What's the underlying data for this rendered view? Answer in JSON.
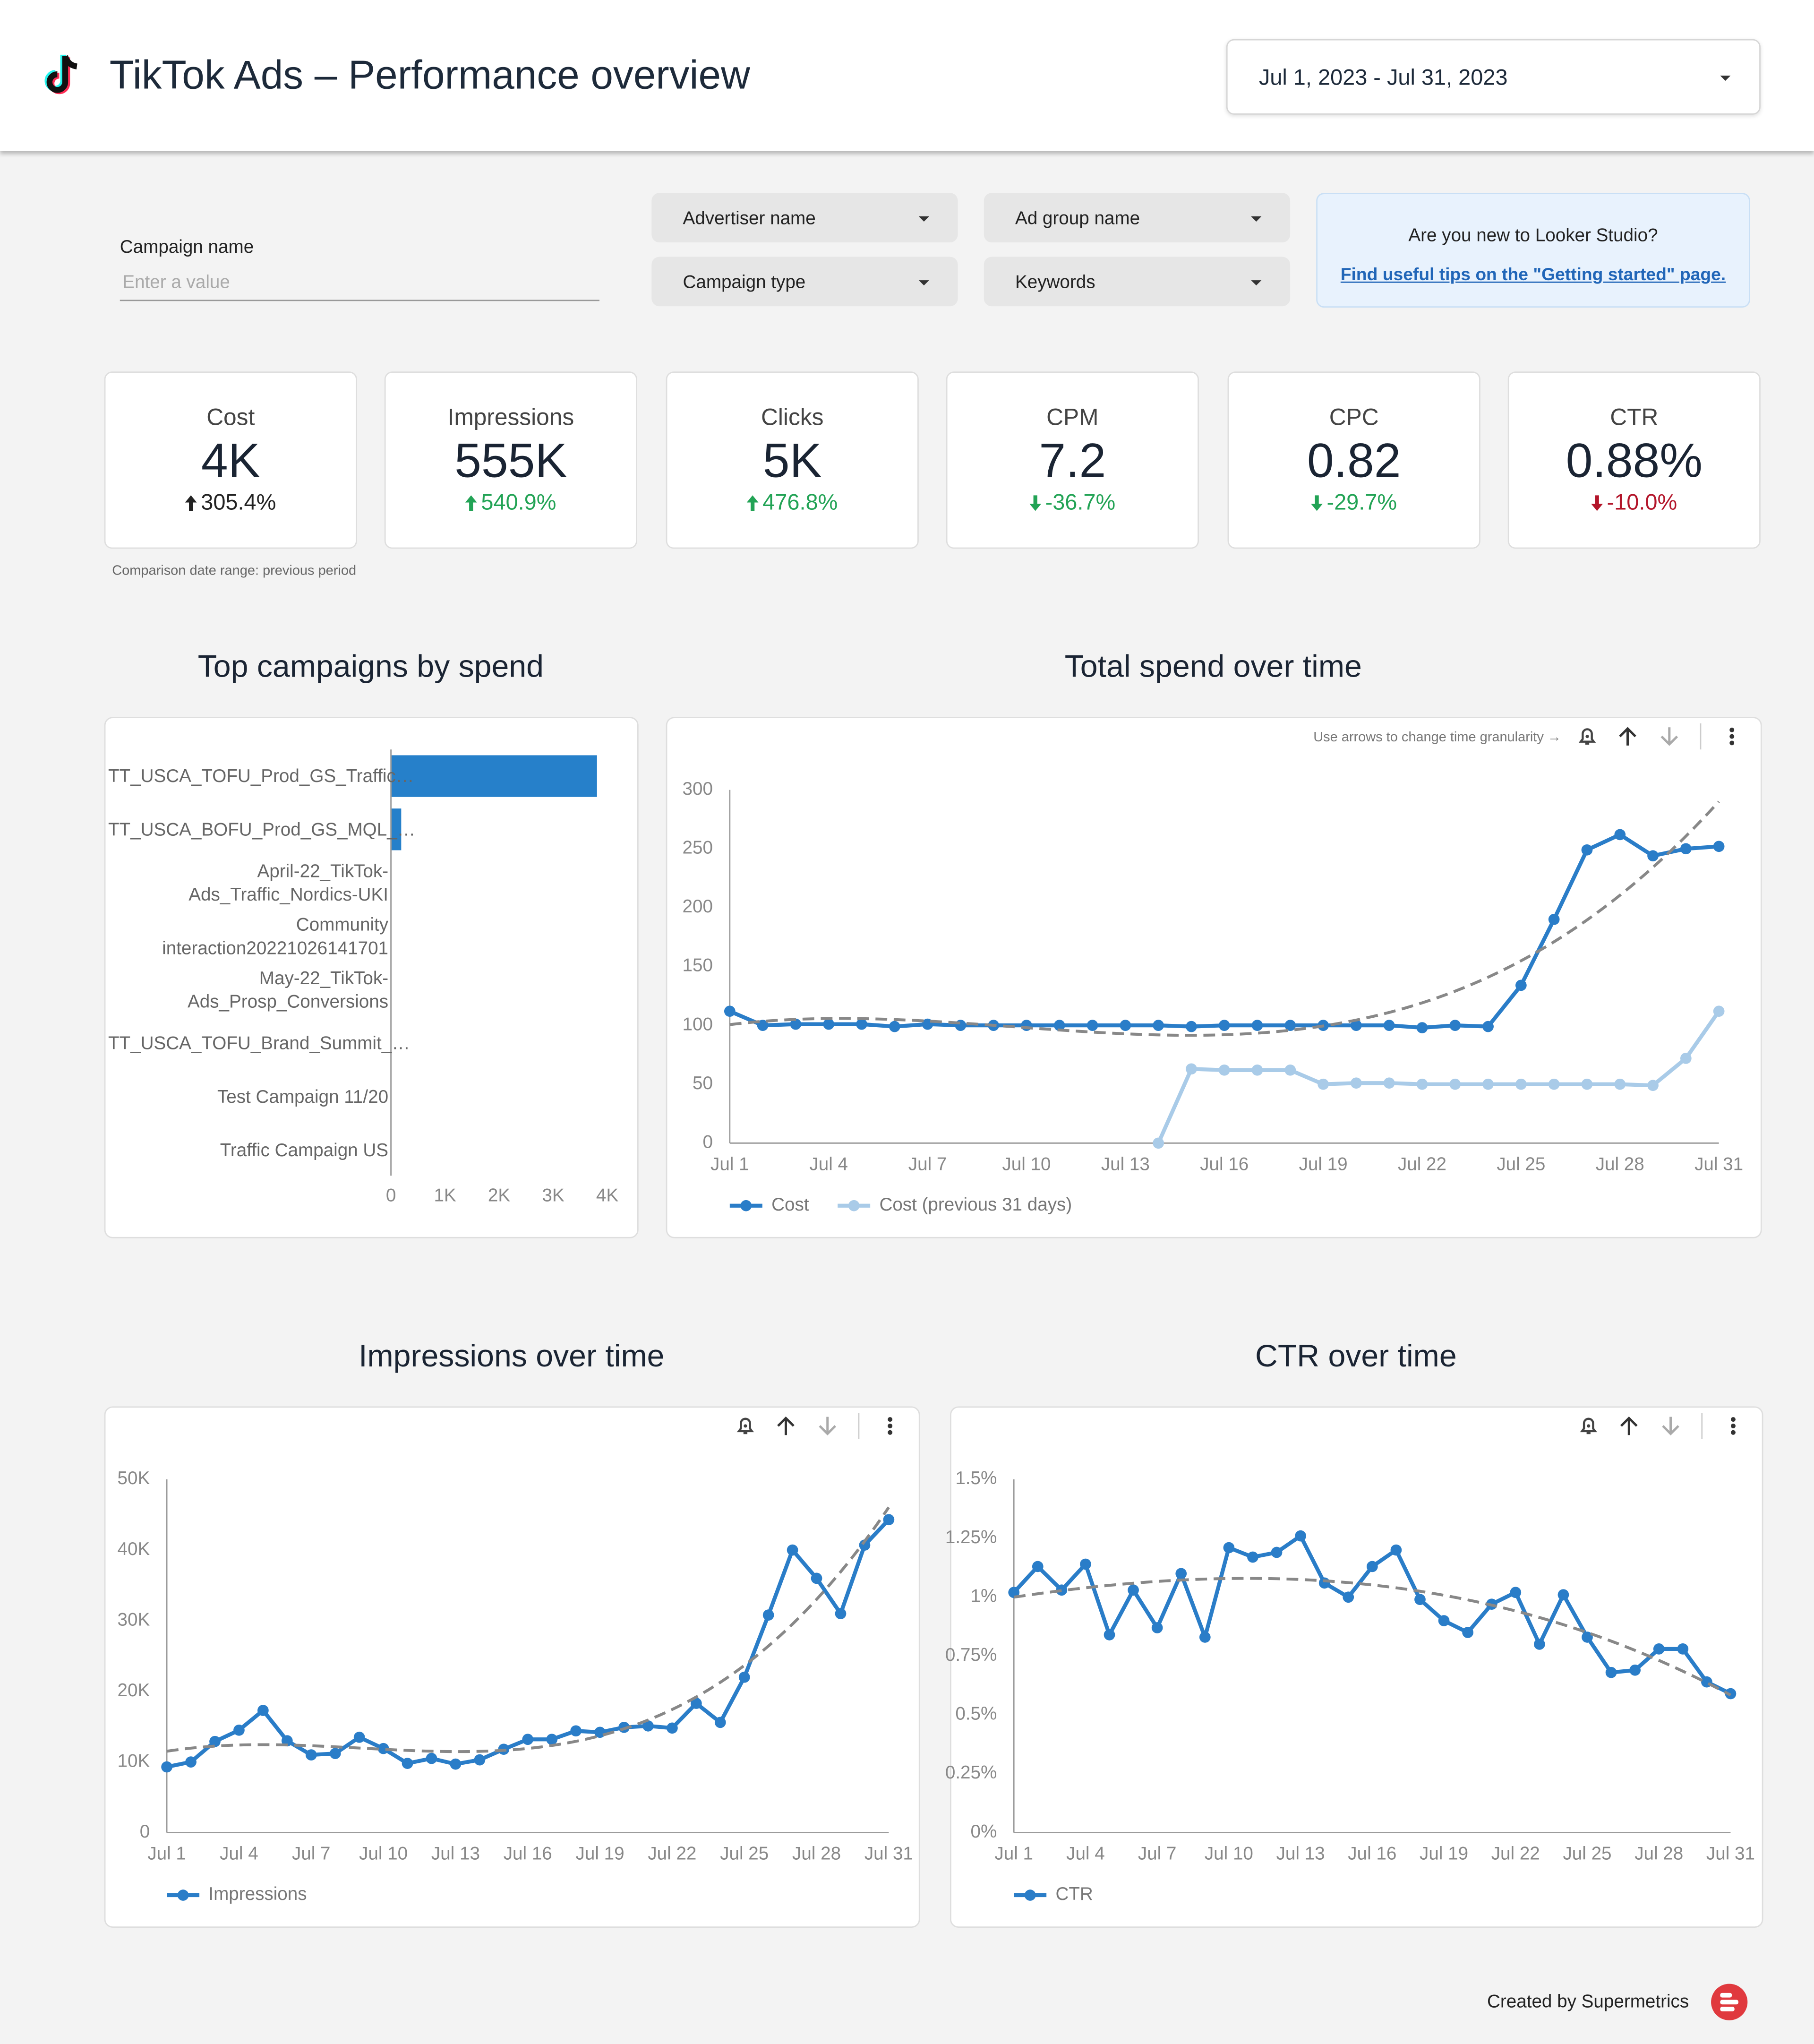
{
  "header": {
    "title": "TikTok Ads – Performance overview",
    "date_range": "Jul 1, 2023 - Jul 31, 2023"
  },
  "filters": {
    "campaign_name": {
      "label": "Campaign name",
      "placeholder": "Enter a value"
    },
    "dropdowns": [
      "Advertiser name",
      "Ad group name",
      "Campaign type",
      "Keywords"
    ]
  },
  "info": {
    "question": "Are you new to Looker Studio?",
    "link": "Find useful tips on the \"Getting started\" page."
  },
  "scorecards": [
    {
      "label": "Cost",
      "value": "4K",
      "change": "305.4%",
      "direction": "up",
      "color": "#222222"
    },
    {
      "label": "Impressions",
      "value": "555K",
      "change": "540.9%",
      "direction": "up",
      "color": "#22a355"
    },
    {
      "label": "Clicks",
      "value": "5K",
      "change": "476.8%",
      "direction": "up",
      "color": "#22a355"
    },
    {
      "label": "CPM",
      "value": "7.2",
      "change": "-36.7%",
      "direction": "down",
      "color": "#22a355"
    },
    {
      "label": "CPC",
      "value": "0.82",
      "change": "-29.7%",
      "direction": "down",
      "color": "#22a355"
    },
    {
      "label": "CTR",
      "value": "0.88%",
      "change": "-10.0%",
      "direction": "down",
      "color": "#b3152a"
    }
  ],
  "comparison_note": "Comparison date range: previous period",
  "chart_data": [
    {
      "type": "bar",
      "orientation": "horizontal",
      "title": "Top campaigns by spend",
      "categories": [
        "TT_USCA_TOFU_Prod_GS_Traffic…",
        "TT_USCA_BOFU_Prod_GS_MQL_…",
        "April-22_TikTok-Ads_Traffic_Nordics-UKI",
        "Community interaction20221026141701",
        "May-22_TikTok-Ads_Prosp_Conversions",
        "TT_USCA_TOFU_Brand_Summit_…",
        "Test Campaign 11/20",
        "Traffic Campaign US"
      ],
      "values": [
        3810,
        190,
        0,
        0,
        0,
        0,
        0,
        0
      ],
      "color": "#2680ca",
      "xlim": [
        0,
        4000
      ],
      "xticks": [
        0,
        {
          "value": 1000,
          "label": "1K"
        },
        {
          "value": 2000,
          "label": "2K"
        },
        {
          "value": 3000,
          "label": "3K"
        },
        {
          "value": 4000,
          "label": "4K"
        }
      ]
    },
    {
      "type": "line",
      "title": "Total spend over time",
      "toolbar_hint": "Use arrows to change time granularity →",
      "categories": [
        "Jul 1",
        null,
        null,
        "Jul 4",
        null,
        null,
        "Jul 7",
        null,
        null,
        "Jul 10",
        null,
        null,
        "Jul 13",
        null,
        null,
        "Jul 16",
        null,
        null,
        "Jul 19",
        null,
        null,
        "Jul 22",
        null,
        null,
        "Jul 25",
        null,
        null,
        "Jul 28",
        null,
        null,
        "Jul 31"
      ],
      "series": [
        {
          "name": "Cost",
          "color": "#2a7dc8",
          "values": [
            112,
            100,
            101,
            101,
            101,
            99,
            101,
            100,
            100,
            100,
            100,
            100,
            100,
            100,
            99,
            100,
            100,
            100,
            100,
            100,
            100,
            98,
            100,
            99,
            134,
            190,
            249,
            262,
            244,
            250,
            252
          ]
        },
        {
          "name": "Cost (previous 31 days)",
          "color": "#a9cbe8",
          "values": [
            null,
            null,
            null,
            null,
            null,
            null,
            null,
            null,
            null,
            null,
            null,
            null,
            null,
            0,
            63,
            62,
            62,
            62,
            50,
            51,
            51,
            50,
            50,
            50,
            50,
            50,
            50,
            50,
            49,
            72,
            112
          ]
        }
      ],
      "ylim": [
        0,
        300
      ],
      "yticks": [
        0,
        50,
        100,
        150,
        200,
        250,
        300
      ],
      "trendline": "polynomial",
      "legend": "bottom-left"
    },
    {
      "type": "line",
      "title": "Impressions over time",
      "categories": [
        "Jul 1",
        null,
        null,
        "Jul 4",
        null,
        null,
        "Jul 7",
        null,
        null,
        "Jul 10",
        null,
        null,
        "Jul 13",
        null,
        null,
        "Jul 16",
        null,
        null,
        "Jul 19",
        null,
        null,
        "Jul 22",
        null,
        null,
        "Jul 25",
        null,
        null,
        "Jul 28",
        null,
        null,
        "Jul 31"
      ],
      "series": [
        {
          "name": "Impressions",
          "color": "#2a7dc8",
          "values": [
            9300,
            10000,
            12900,
            14500,
            17300,
            13000,
            11000,
            11200,
            13500,
            11900,
            9800,
            10500,
            9700,
            10300,
            11800,
            13200,
            13200,
            14400,
            14200,
            14900,
            15100,
            14800,
            18300,
            15600,
            22000,
            30800,
            40000,
            36000,
            31000,
            40700,
            44300
          ]
        }
      ],
      "ylim": [
        0,
        50000
      ],
      "yticks": [
        0,
        {
          "value": 10000,
          "label": "10K"
        },
        {
          "value": 20000,
          "label": "20K"
        },
        {
          "value": 30000,
          "label": "30K"
        },
        {
          "value": 40000,
          "label": "40K"
        },
        {
          "value": 50000,
          "label": "50K"
        }
      ],
      "trendline": "polynomial",
      "legend": "bottom-left"
    },
    {
      "type": "line",
      "title": "CTR over time",
      "categories": [
        "Jul 1",
        null,
        null,
        "Jul 4",
        null,
        null,
        "Jul 7",
        null,
        null,
        "Jul 10",
        null,
        null,
        "Jul 13",
        null,
        null,
        "Jul 16",
        null,
        null,
        "Jul 19",
        null,
        null,
        "Jul 22",
        null,
        null,
        "Jul 25",
        null,
        null,
        "Jul 28",
        null,
        null,
        "Jul 31"
      ],
      "series": [
        {
          "name": "CTR",
          "color": "#2a7dc8",
          "values": [
            1.02,
            1.13,
            1.03,
            1.14,
            0.84,
            1.03,
            0.87,
            1.1,
            0.83,
            1.21,
            1.17,
            1.19,
            1.26,
            1.06,
            1.0,
            1.13,
            1.2,
            0.99,
            0.9,
            0.85,
            0.97,
            1.02,
            0.8,
            1.01,
            0.83,
            0.68,
            0.69,
            0.78,
            0.78,
            0.64,
            0.59
          ]
        }
      ],
      "ylim": [
        0,
        1.5
      ],
      "yticks": [
        {
          "value": 0,
          "label": "0%"
        },
        {
          "value": 0.25,
          "label": "0.25%"
        },
        {
          "value": 0.5,
          "label": "0.5%"
        },
        {
          "value": 0.75,
          "label": "0.75%"
        },
        {
          "value": 1,
          "label": "1%"
        },
        {
          "value": 1.25,
          "label": "1.25%"
        },
        {
          "value": 1.5,
          "label": "1.5%"
        }
      ],
      "trendline": "polynomial",
      "legend": "bottom-left"
    }
  ],
  "footer": {
    "credit": "Created by Supermetrics"
  }
}
